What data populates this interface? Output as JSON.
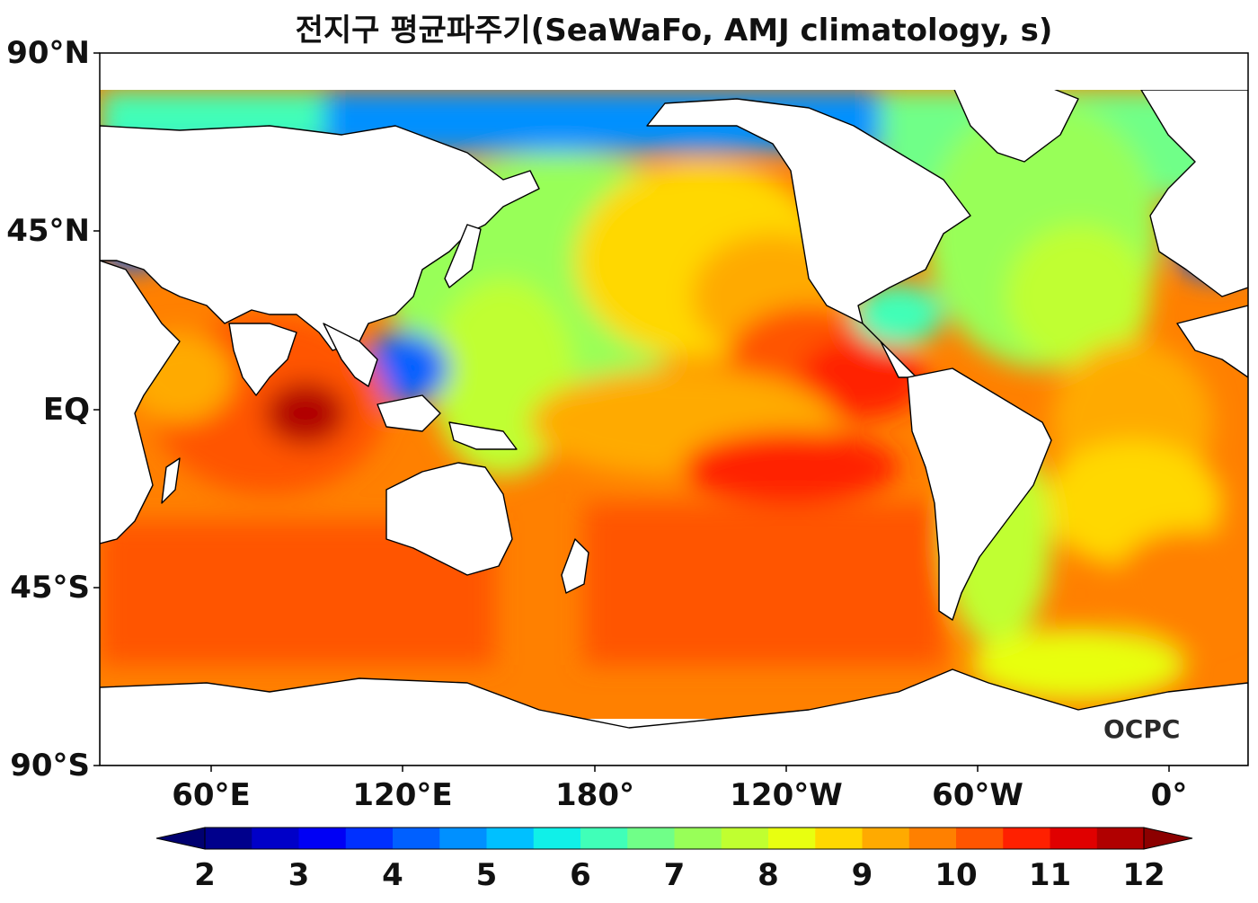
{
  "title": "전지구 평균파주기(SeaWaFo, AMJ climatology, s)",
  "map": {
    "lat_ticks": [
      "90°N",
      "45°N",
      "EQ",
      "45°S",
      "90°S"
    ],
    "lon_ticks": [
      "60°E",
      "120°E",
      "180°",
      "120°W",
      "60°W",
      "0°"
    ],
    "logo": "OCPC"
  },
  "colorbar": {
    "min": 2,
    "max": 12,
    "step": 0.5,
    "extend": "both",
    "tick_labels": [
      "2",
      "3",
      "4",
      "5",
      "6",
      "7",
      "8",
      "9",
      "10",
      "11",
      "12"
    ],
    "colors": [
      "#00008c",
      "#0000c8",
      "#0000f5",
      "#0030ff",
      "#0060ff",
      "#0090ff",
      "#00c0ff",
      "#10f0e8",
      "#40ffb8",
      "#70ff88",
      "#98ff58",
      "#c0ff30",
      "#e8ff10",
      "#ffd800",
      "#ffaa00",
      "#ff8000",
      "#ff5500",
      "#ff2000",
      "#e00000",
      "#b00000"
    ],
    "extend_low_color": "#000070",
    "extend_high_color": "#8c0000"
  }
}
